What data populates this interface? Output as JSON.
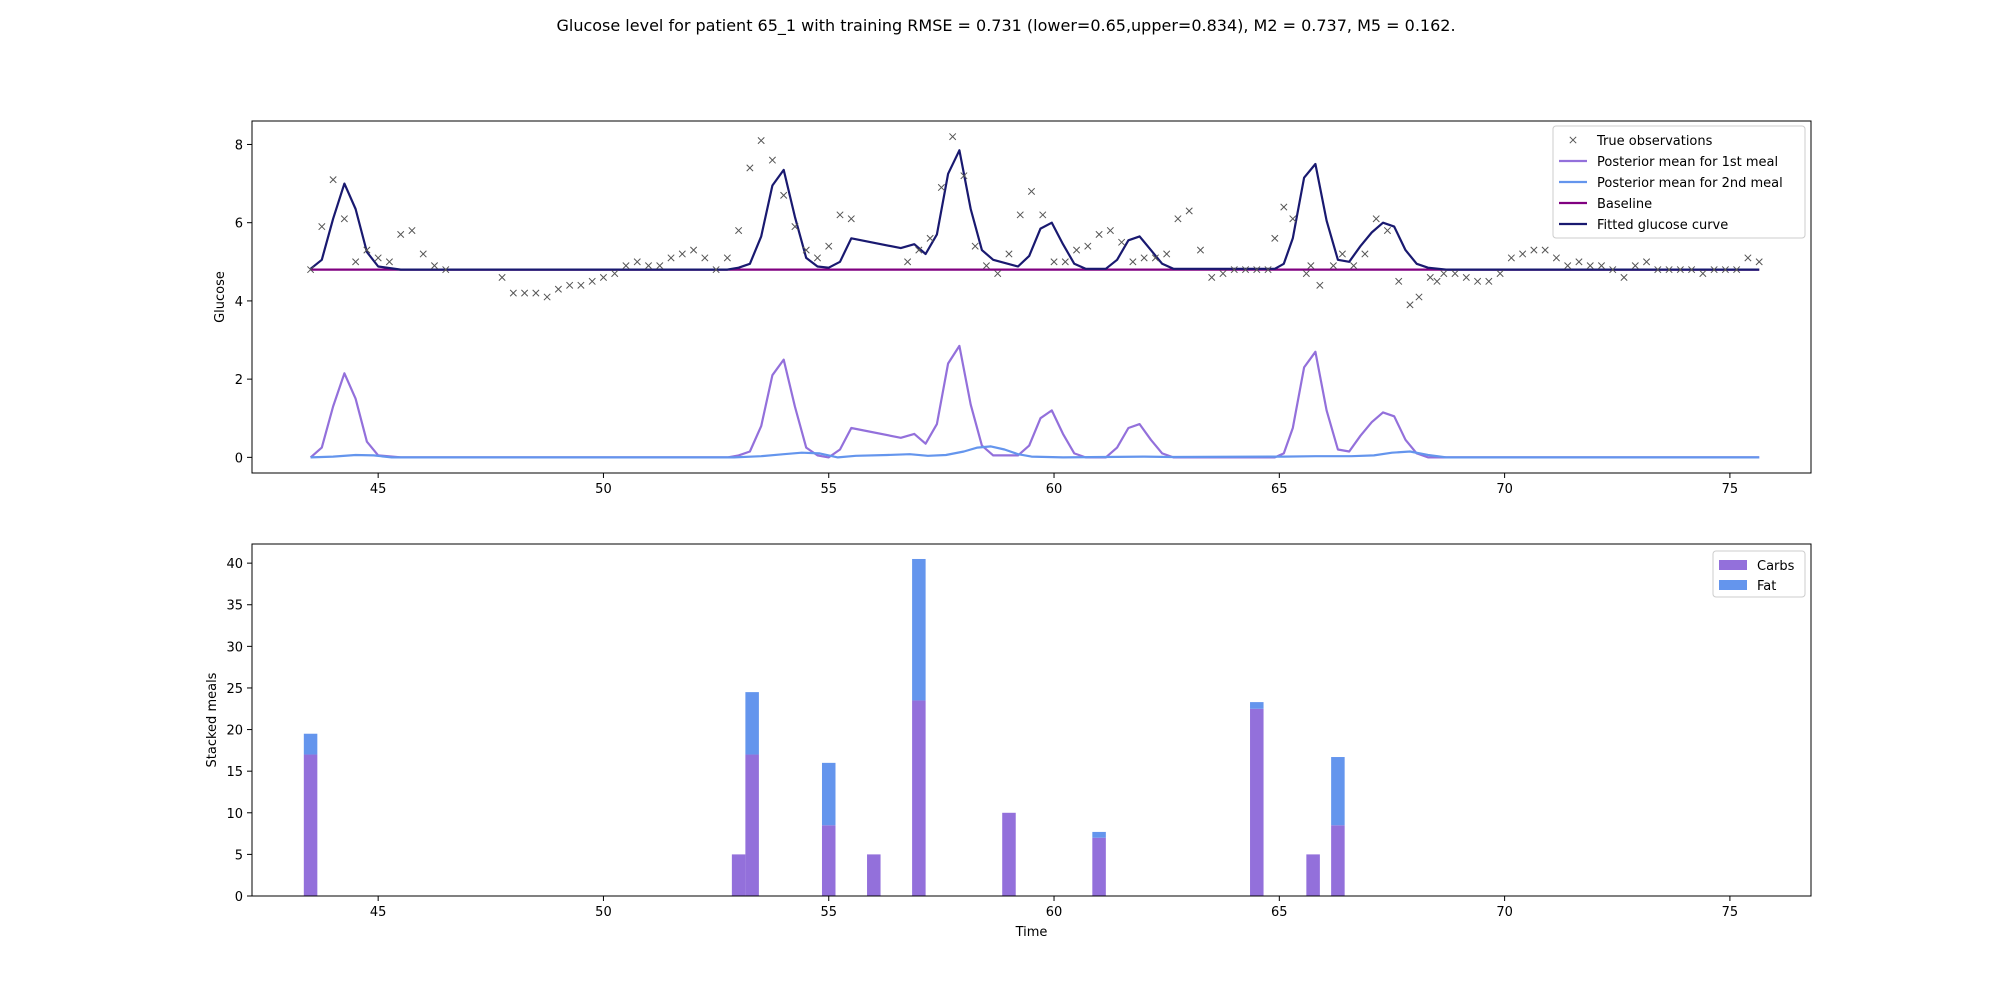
{
  "figure": {
    "suptitle": "Glucose level for patient 65_1 with training RMSE = 0.731 (lower=0.65,upper=0.834), M2 = 0.737, M5 = 0.162."
  },
  "colors": {
    "observations": "#555555",
    "meal1": "#9370db",
    "meal2": "#6495ed",
    "baseline": "#800080",
    "fitted": "#191970",
    "carbs": "#9370db",
    "fat": "#6495ed"
  },
  "chart_data": [
    {
      "type": "line",
      "ylabel": "Glucose",
      "xlabel": "",
      "xlim": [
        42.2,
        76.8
      ],
      "ylim": [
        -0.4,
        8.6
      ],
      "xticks": [
        45,
        50,
        55,
        60,
        65,
        70,
        75
      ],
      "yticks": [
        0,
        2,
        4,
        6,
        8
      ],
      "legend_position": "top-right",
      "legend": {
        "observations": "True observations",
        "meal1": "Posterior mean for 1st meal",
        "meal2": "Posterior mean for 2nd meal",
        "baseline": "Baseline",
        "fitted": "Fitted glucose curve"
      },
      "observations": [
        [
          43.5,
          4.8
        ],
        [
          43.75,
          5.9
        ],
        [
          44.0,
          7.1
        ],
        [
          44.25,
          6.1
        ],
        [
          44.5,
          5.0
        ],
        [
          44.75,
          5.3
        ],
        [
          45.0,
          5.1
        ],
        [
          45.25,
          5.0
        ],
        [
          45.5,
          5.7
        ],
        [
          45.75,
          5.8
        ],
        [
          46.0,
          5.2
        ],
        [
          46.25,
          4.9
        ],
        [
          46.5,
          4.8
        ],
        [
          47.75,
          4.6
        ],
        [
          48.0,
          4.2
        ],
        [
          48.25,
          4.2
        ],
        [
          48.5,
          4.2
        ],
        [
          48.75,
          4.1
        ],
        [
          49.0,
          4.3
        ],
        [
          49.25,
          4.4
        ],
        [
          49.5,
          4.4
        ],
        [
          49.75,
          4.5
        ],
        [
          50.0,
          4.6
        ],
        [
          50.25,
          4.7
        ],
        [
          50.5,
          4.9
        ],
        [
          50.75,
          5.0
        ],
        [
          51.0,
          4.9
        ],
        [
          51.25,
          4.9
        ],
        [
          51.5,
          5.1
        ],
        [
          51.75,
          5.2
        ],
        [
          52.0,
          5.3
        ],
        [
          52.25,
          5.1
        ],
        [
          52.5,
          4.8
        ],
        [
          52.75,
          5.1
        ],
        [
          53.0,
          5.8
        ],
        [
          53.25,
          7.4
        ],
        [
          53.5,
          8.1
        ],
        [
          53.75,
          7.6
        ],
        [
          54.0,
          6.7
        ],
        [
          54.25,
          5.9
        ],
        [
          54.5,
          5.3
        ],
        [
          54.75,
          5.1
        ],
        [
          55.0,
          5.4
        ],
        [
          55.25,
          6.2
        ],
        [
          55.5,
          6.1
        ],
        [
          56.75,
          5.0
        ],
        [
          57.0,
          5.3
        ],
        [
          57.25,
          5.6
        ],
        [
          57.5,
          6.9
        ],
        [
          57.75,
          8.2
        ],
        [
          58.0,
          7.2
        ],
        [
          58.25,
          5.4
        ],
        [
          58.5,
          4.9
        ],
        [
          58.75,
          4.7
        ],
        [
          59.0,
          5.2
        ],
        [
          59.25,
          6.2
        ],
        [
          59.5,
          6.8
        ],
        [
          59.75,
          6.2
        ],
        [
          60.0,
          5.0
        ],
        [
          60.25,
          5.0
        ],
        [
          60.5,
          5.3
        ],
        [
          60.75,
          5.4
        ],
        [
          61.0,
          5.7
        ],
        [
          61.25,
          5.8
        ],
        [
          61.5,
          5.5
        ],
        [
          61.75,
          5.0
        ],
        [
          62.0,
          5.1
        ],
        [
          62.25,
          5.1
        ],
        [
          62.5,
          5.2
        ],
        [
          62.75,
          6.1
        ],
        [
          63.0,
          6.3
        ],
        [
          63.25,
          5.3
        ],
        [
          63.5,
          4.6
        ],
        [
          63.75,
          4.7
        ],
        [
          64.0,
          4.8
        ],
        [
          64.25,
          4.8
        ],
        [
          64.5,
          4.8
        ],
        [
          64.75,
          4.8
        ],
        [
          64.9,
          5.6
        ],
        [
          65.1,
          6.4
        ],
        [
          65.3,
          6.1
        ],
        [
          65.6,
          4.7
        ],
        [
          65.7,
          4.9
        ],
        [
          65.9,
          4.4
        ],
        [
          66.2,
          4.9
        ],
        [
          66.4,
          5.2
        ],
        [
          66.65,
          4.9
        ],
        [
          66.9,
          5.2
        ],
        [
          67.15,
          6.1
        ],
        [
          67.4,
          5.8
        ],
        [
          67.65,
          4.5
        ],
        [
          67.9,
          3.9
        ],
        [
          68.1,
          4.1
        ],
        [
          68.35,
          4.6
        ],
        [
          68.5,
          4.5
        ],
        [
          68.65,
          4.7
        ],
        [
          68.9,
          4.7
        ],
        [
          69.15,
          4.6
        ],
        [
          69.4,
          4.5
        ],
        [
          69.65,
          4.5
        ],
        [
          69.9,
          4.7
        ],
        [
          70.15,
          5.1
        ],
        [
          70.4,
          5.2
        ],
        [
          70.65,
          5.3
        ],
        [
          70.9,
          5.3
        ],
        [
          71.15,
          5.1
        ],
        [
          71.4,
          4.9
        ],
        [
          71.65,
          5.0
        ],
        [
          71.9,
          4.9
        ],
        [
          72.15,
          4.9
        ],
        [
          72.4,
          4.8
        ],
        [
          72.65,
          4.6
        ],
        [
          72.9,
          4.9
        ],
        [
          73.15,
          5.0
        ],
        [
          73.4,
          4.8
        ],
        [
          73.65,
          4.8
        ],
        [
          73.9,
          4.8
        ],
        [
          74.15,
          4.8
        ],
        [
          74.4,
          4.7
        ],
        [
          74.65,
          4.8
        ],
        [
          74.9,
          4.8
        ],
        [
          75.15,
          4.8
        ],
        [
          75.4,
          5.1
        ],
        [
          75.65,
          5.0
        ]
      ],
      "meal1": [
        [
          43.5,
          0.0
        ],
        [
          43.75,
          0.25
        ],
        [
          44.0,
          1.3
        ],
        [
          44.25,
          2.15
        ],
        [
          44.5,
          1.5
        ],
        [
          44.75,
          0.4
        ],
        [
          45.0,
          0.05
        ],
        [
          45.5,
          0.0
        ],
        [
          52.75,
          0.0
        ],
        [
          53.0,
          0.05
        ],
        [
          53.25,
          0.15
        ],
        [
          53.5,
          0.8
        ],
        [
          53.75,
          2.1
        ],
        [
          54.0,
          2.5
        ],
        [
          54.25,
          1.3
        ],
        [
          54.5,
          0.25
        ],
        [
          54.75,
          0.05
        ],
        [
          55.0,
          0.0
        ],
        [
          55.25,
          0.2
        ],
        [
          55.5,
          0.75
        ],
        [
          56.6,
          0.5
        ],
        [
          56.9,
          0.6
        ],
        [
          57.15,
          0.35
        ],
        [
          57.4,
          0.85
        ],
        [
          57.65,
          2.4
        ],
        [
          57.9,
          2.85
        ],
        [
          58.15,
          1.35
        ],
        [
          58.4,
          0.3
        ],
        [
          58.65,
          0.05
        ],
        [
          59.2,
          0.05
        ],
        [
          59.45,
          0.3
        ],
        [
          59.7,
          1.0
        ],
        [
          59.95,
          1.2
        ],
        [
          60.2,
          0.6
        ],
        [
          60.45,
          0.1
        ],
        [
          60.7,
          0.0
        ],
        [
          61.15,
          0.0
        ],
        [
          61.4,
          0.25
        ],
        [
          61.65,
          0.75
        ],
        [
          61.9,
          0.85
        ],
        [
          62.15,
          0.45
        ],
        [
          62.4,
          0.1
        ],
        [
          62.65,
          0.0
        ],
        [
          64.9,
          0.0
        ],
        [
          65.1,
          0.1
        ],
        [
          65.3,
          0.75
        ],
        [
          65.55,
          2.3
        ],
        [
          65.8,
          2.7
        ],
        [
          66.05,
          1.2
        ],
        [
          66.3,
          0.2
        ],
        [
          66.55,
          0.15
        ],
        [
          66.8,
          0.55
        ],
        [
          67.05,
          0.9
        ],
        [
          67.3,
          1.15
        ],
        [
          67.55,
          1.05
        ],
        [
          67.8,
          0.45
        ],
        [
          68.05,
          0.1
        ],
        [
          68.3,
          0.0
        ],
        [
          75.65,
          0.0
        ]
      ],
      "meal2": [
        [
          43.5,
          0.0
        ],
        [
          44.0,
          0.02
        ],
        [
          44.5,
          0.06
        ],
        [
          44.9,
          0.05
        ],
        [
          45.3,
          0.0
        ],
        [
          52.9,
          0.0
        ],
        [
          53.5,
          0.03
        ],
        [
          54.0,
          0.08
        ],
        [
          54.4,
          0.12
        ],
        [
          54.8,
          0.1
        ],
        [
          55.2,
          0.0
        ],
        [
          55.6,
          0.04
        ],
        [
          56.3,
          0.06
        ],
        [
          56.8,
          0.08
        ],
        [
          57.2,
          0.04
        ],
        [
          57.6,
          0.06
        ],
        [
          58.0,
          0.15
        ],
        [
          58.3,
          0.25
        ],
        [
          58.6,
          0.28
        ],
        [
          58.9,
          0.2
        ],
        [
          59.2,
          0.08
        ],
        [
          59.5,
          0.02
        ],
        [
          60.2,
          0.0
        ],
        [
          62.0,
          0.02
        ],
        [
          62.6,
          0.01
        ],
        [
          65.1,
          0.02
        ],
        [
          65.8,
          0.03
        ],
        [
          66.6,
          0.03
        ],
        [
          67.1,
          0.05
        ],
        [
          67.5,
          0.12
        ],
        [
          67.9,
          0.15
        ],
        [
          68.3,
          0.06
        ],
        [
          68.7,
          0.0
        ],
        [
          75.65,
          0.0
        ]
      ],
      "baseline": [
        [
          43.5,
          4.8
        ],
        [
          75.65,
          4.8
        ]
      ],
      "fitted": [
        [
          43.5,
          4.82
        ],
        [
          43.75,
          5.05
        ],
        [
          44.0,
          6.1
        ],
        [
          44.25,
          7.0
        ],
        [
          44.5,
          6.35
        ],
        [
          44.75,
          5.25
        ],
        [
          45.0,
          4.88
        ],
        [
          45.5,
          4.8
        ],
        [
          52.75,
          4.8
        ],
        [
          53.0,
          4.85
        ],
        [
          53.25,
          4.95
        ],
        [
          53.5,
          5.65
        ],
        [
          53.75,
          6.95
        ],
        [
          54.0,
          7.35
        ],
        [
          54.25,
          6.15
        ],
        [
          54.5,
          5.1
        ],
        [
          54.75,
          4.88
        ],
        [
          55.0,
          4.85
        ],
        [
          55.25,
          5.0
        ],
        [
          55.5,
          5.6
        ],
        [
          56.6,
          5.35
        ],
        [
          56.9,
          5.45
        ],
        [
          57.15,
          5.2
        ],
        [
          57.4,
          5.7
        ],
        [
          57.65,
          7.25
        ],
        [
          57.9,
          7.85
        ],
        [
          58.15,
          6.35
        ],
        [
          58.4,
          5.3
        ],
        [
          58.65,
          5.05
        ],
        [
          59.2,
          4.88
        ],
        [
          59.45,
          5.15
        ],
        [
          59.7,
          5.85
        ],
        [
          59.95,
          6.0
        ],
        [
          60.2,
          5.45
        ],
        [
          60.45,
          4.95
        ],
        [
          60.7,
          4.82
        ],
        [
          61.15,
          4.82
        ],
        [
          61.4,
          5.05
        ],
        [
          61.65,
          5.55
        ],
        [
          61.9,
          5.65
        ],
        [
          62.15,
          5.3
        ],
        [
          62.4,
          4.95
        ],
        [
          62.65,
          4.82
        ],
        [
          64.9,
          4.82
        ],
        [
          65.1,
          4.95
        ],
        [
          65.3,
          5.6
        ],
        [
          65.55,
          7.15
        ],
        [
          65.8,
          7.5
        ],
        [
          66.05,
          6.05
        ],
        [
          66.3,
          5.05
        ],
        [
          66.55,
          5.0
        ],
        [
          66.8,
          5.4
        ],
        [
          67.05,
          5.75
        ],
        [
          67.3,
          6.0
        ],
        [
          67.55,
          5.9
        ],
        [
          67.8,
          5.3
        ],
        [
          68.05,
          4.95
        ],
        [
          68.3,
          4.85
        ],
        [
          68.7,
          4.8
        ],
        [
          75.65,
          4.8
        ]
      ]
    },
    {
      "type": "bar",
      "stacked": true,
      "xlabel": "Time",
      "ylabel": "Stacked meals",
      "xlim": [
        42.2,
        76.8
      ],
      "ylim": [
        0,
        42.3
      ],
      "xticks": [
        45,
        50,
        55,
        60,
        65,
        70,
        75
      ],
      "yticks": [
        0,
        5,
        10,
        15,
        20,
        25,
        30,
        35,
        40
      ],
      "bar_width": 0.3,
      "legend_position": "top-right",
      "series": [
        {
          "name": "Carbs",
          "color_key": "carbs",
          "points": [
            [
              43.5,
              17
            ],
            [
              53.0,
              5
            ],
            [
              53.3,
              17
            ],
            [
              55.0,
              8.5
            ],
            [
              56.0,
              5
            ],
            [
              57.0,
              23.5
            ],
            [
              59.0,
              10
            ],
            [
              61.0,
              7
            ],
            [
              64.5,
              22.5
            ],
            [
              65.75,
              5
            ],
            [
              66.3,
              8.5
            ]
          ]
        },
        {
          "name": "Fat",
          "color_key": "fat",
          "points": [
            [
              43.5,
              2.5
            ],
            [
              53.0,
              0
            ],
            [
              53.3,
              7.5
            ],
            [
              55.0,
              7.5
            ],
            [
              56.0,
              0
            ],
            [
              57.0,
              17
            ],
            [
              59.0,
              0
            ],
            [
              61.0,
              0.7
            ],
            [
              64.5,
              0.8
            ],
            [
              65.75,
              0
            ],
            [
              66.3,
              8.2
            ]
          ]
        }
      ]
    }
  ]
}
